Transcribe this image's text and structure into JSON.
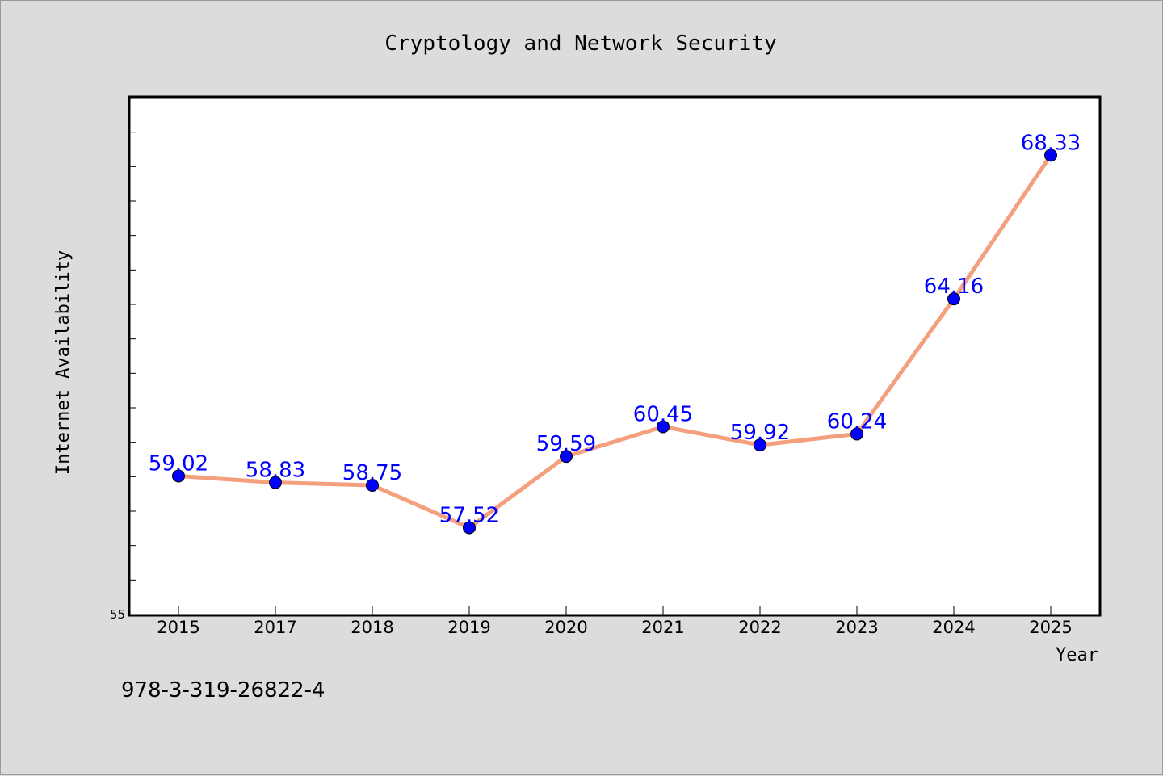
{
  "chart_data": {
    "type": "line",
    "title": "Cryptology and Network Security",
    "xlabel": "Year",
    "ylabel": "Internet Availability",
    "categories": [
      "2015",
      "2017",
      "2018",
      "2019",
      "2020",
      "2021",
      "2022",
      "2023",
      "2024",
      "2025"
    ],
    "series": [
      {
        "values": [
          59.02,
          58.83,
          58.75,
          57.52,
          59.59,
          60.45,
          59.92,
          60.24,
          64.16,
          68.33
        ],
        "labels": [
          "59.02",
          "58.83",
          "58.75",
          "57.52",
          "59.59",
          "60.45",
          "59.92",
          "60.24",
          "64.16",
          "68.33"
        ],
        "line_color": "#f4a07f",
        "marker_color": "#0000ff"
      }
    ],
    "ylim": [
      55,
      70
    ],
    "y_tick_labels": [
      "55"
    ],
    "label_color": "#0000ff",
    "grid": false
  },
  "footer": {
    "isbn": "978-3-319-26822-4"
  }
}
